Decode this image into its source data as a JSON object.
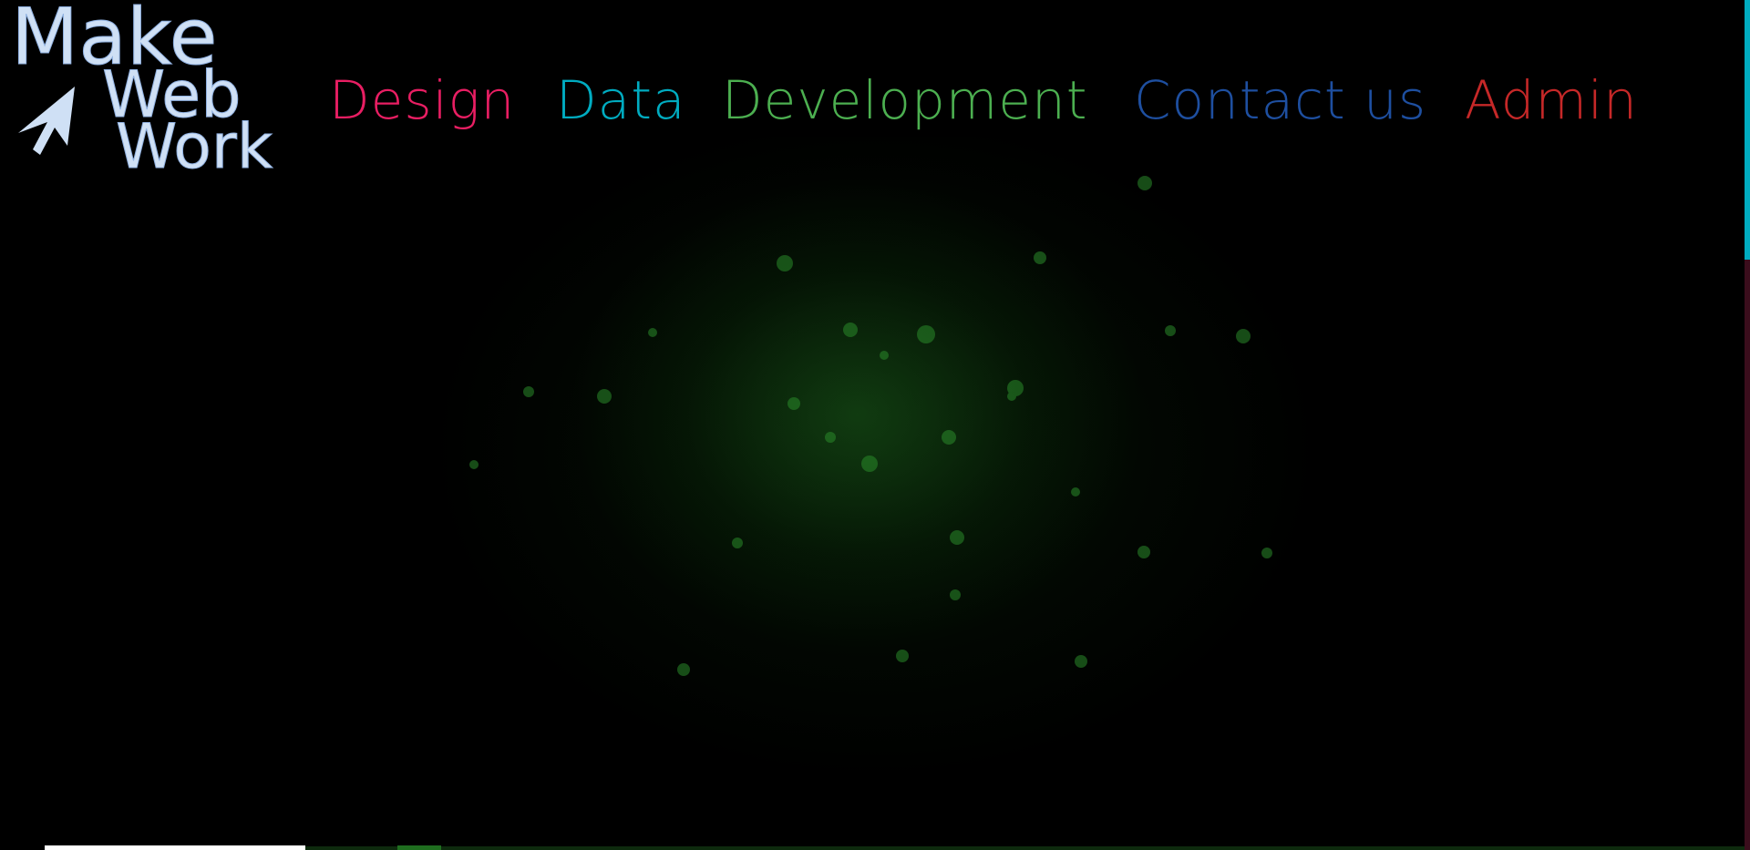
{
  "logo": {
    "lines": [
      "Make",
      "Web",
      "Work"
    ]
  },
  "nav": [
    {
      "label": "Design"
    },
    {
      "label": "Data"
    },
    {
      "label": "Development"
    },
    {
      "label": "Contact us"
    },
    {
      "label": "Admin"
    }
  ]
}
